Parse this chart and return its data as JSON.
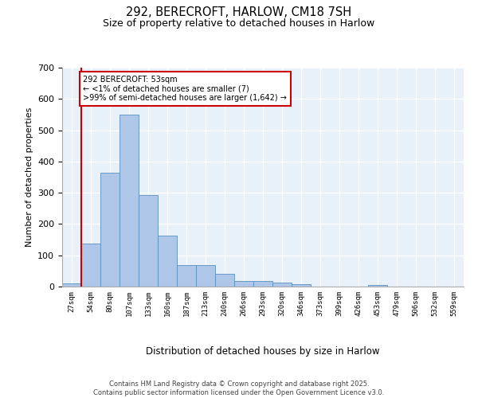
{
  "title_line1": "292, BERECROFT, HARLOW, CM18 7SH",
  "title_line2": "Size of property relative to detached houses in Harlow",
  "xlabel": "Distribution of detached houses by size in Harlow",
  "ylabel": "Number of detached properties",
  "bar_labels": [
    "27sqm",
    "54sqm",
    "80sqm",
    "107sqm",
    "133sqm",
    "160sqm",
    "187sqm",
    "213sqm",
    "240sqm",
    "266sqm",
    "293sqm",
    "320sqm",
    "346sqm",
    "373sqm",
    "399sqm",
    "426sqm",
    "453sqm",
    "479sqm",
    "506sqm",
    "532sqm",
    "559sqm"
  ],
  "bar_values": [
    10,
    138,
    363,
    550,
    293,
    162,
    68,
    68,
    40,
    18,
    18,
    13,
    8,
    0,
    0,
    0,
    5,
    0,
    0,
    0,
    0
  ],
  "bar_color": "#aec6e8",
  "bar_edge_color": "#5a8fc0",
  "background_color": "#e8f0fa",
  "grid_color": "#ffffff",
  "fig_background": "#ffffff",
  "vline_color": "#cc0000",
  "vline_pos": 0.5,
  "annotation_text": "292 BERECROFT: 53sqm\n← <1% of detached houses are smaller (7)\n>99% of semi-detached houses are larger (1,642) →",
  "annotation_box_facecolor": "#ffffff",
  "annotation_box_edgecolor": "#cc0000",
  "footer_text": "Contains HM Land Registry data © Crown copyright and database right 2025.\nContains public sector information licensed under the Open Government Licence v3.0.",
  "ylim": [
    0,
    700
  ],
  "yticks": [
    0,
    100,
    200,
    300,
    400,
    500,
    600,
    700
  ]
}
